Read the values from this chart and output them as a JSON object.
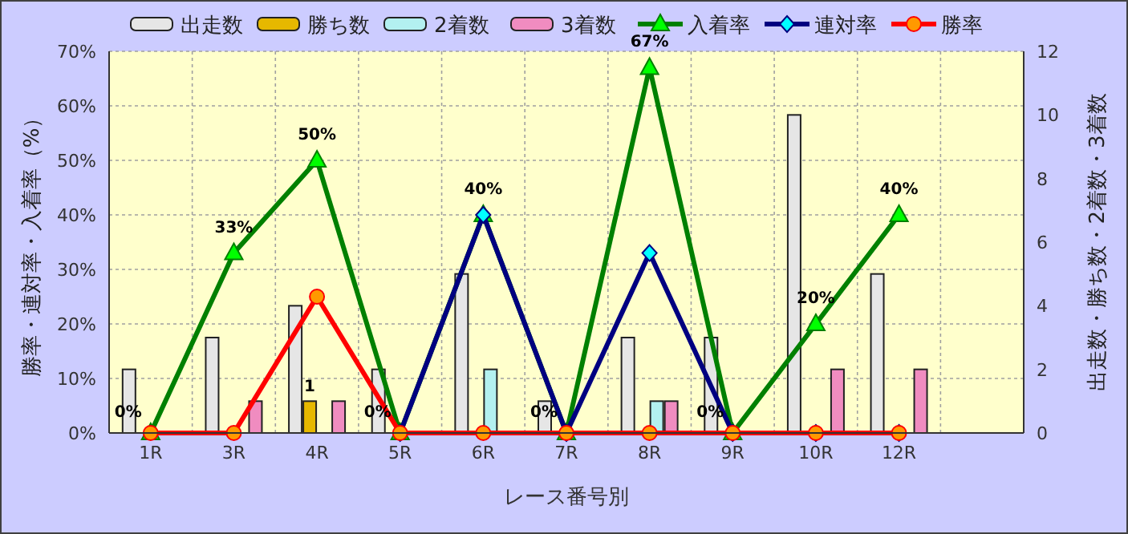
{
  "chart_data": {
    "type": "bar",
    "xlabel": "レース番号別",
    "ylabel": "勝率・連対率・入着率（%）",
    "y2label": "出走数・勝ち数・2着数・3着数",
    "categories": [
      "1R",
      "3R",
      "4R",
      "5R",
      "6R",
      "7R",
      "8R",
      "9R",
      "10R",
      "12R",
      null
    ],
    "series": [
      {
        "name": "出走数",
        "axis": "y2",
        "color": "#e6e6e6",
        "values": [
          2,
          3,
          4,
          2,
          5,
          1,
          3,
          3,
          10,
          5,
          null
        ]
      },
      {
        "name": "勝ち数",
        "axis": "y2",
        "color": "#e6b800",
        "values": [
          0,
          0,
          1,
          0,
          0,
          0,
          0,
          0,
          0,
          0,
          null
        ],
        "value_labels": [
          null,
          null,
          "1",
          null,
          null,
          null,
          null,
          null,
          null,
          null,
          null
        ]
      },
      {
        "name": "2着数",
        "axis": "y2",
        "color": "#b3f0f0",
        "values": [
          0,
          0,
          0,
          0,
          2,
          0,
          1,
          0,
          0,
          0,
          null
        ]
      },
      {
        "name": "3着数",
        "axis": "y2",
        "color": "#f08cc0",
        "values": [
          0,
          1,
          1,
          0,
          0,
          0,
          1,
          0,
          2,
          2,
          null
        ]
      },
      {
        "name": "入着率",
        "type": "line",
        "marker": "triangle",
        "color": "#008000",
        "values": [
          0,
          33,
          50,
          0,
          40,
          0,
          67,
          0,
          20,
          40,
          null
        ],
        "value_labels": [
          "0%",
          "33%",
          "50%",
          "0%",
          "40%",
          "0%",
          "67%",
          "0%",
          "20%",
          "40%",
          null
        ]
      },
      {
        "name": "連対率",
        "type": "line",
        "marker": "diamond",
        "color": "#000080",
        "values": [
          null,
          null,
          null,
          0,
          40,
          0,
          33,
          0,
          0,
          0,
          null
        ]
      },
      {
        "name": "勝率",
        "type": "line",
        "marker": "circle",
        "color": "#ff0000",
        "values": [
          0,
          0,
          25,
          0,
          0,
          0,
          0,
          0,
          0,
          0,
          null
        ]
      }
    ],
    "ylim": [
      0,
      70
    ],
    "yticks": [
      {
        "value": 0,
        "label": "0%"
      },
      {
        "value": 10,
        "label": "10%"
      },
      {
        "value": 20,
        "label": "20%"
      },
      {
        "value": 30,
        "label": "30%"
      },
      {
        "value": 40,
        "label": "40%"
      },
      {
        "value": 50,
        "label": "50%"
      },
      {
        "value": 60,
        "label": "60%"
      },
      {
        "value": 70,
        "label": "70%"
      }
    ],
    "y2lim": [
      0,
      12
    ],
    "y2ticks": [
      0,
      2,
      4,
      6,
      8,
      10,
      12
    ],
    "grid": true,
    "legend": "top"
  }
}
